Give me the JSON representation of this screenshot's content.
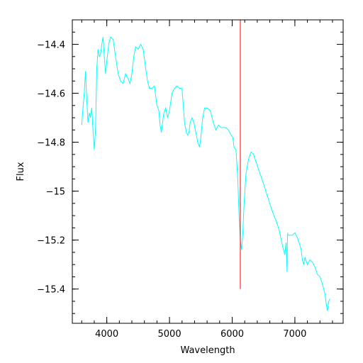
{
  "chart_data": {
    "type": "line",
    "title": "",
    "xlabel": "Wavelength",
    "ylabel": "Flux",
    "xlim": [
      3450,
      7770
    ],
    "ylim": [
      -15.54,
      -14.3
    ],
    "xticks_major": [
      4000,
      5000,
      6000,
      7000
    ],
    "xtick_labels": [
      "4000",
      "5000",
      "6000",
      "7000"
    ],
    "xticks_minor_step": 200,
    "yticks_major": [
      -14.4,
      -14.6,
      -14.8,
      -15,
      -15.2,
      -15.4
    ],
    "ytick_labels": [
      "−14.4",
      "−14.6",
      "−14.8",
      "−15",
      "−15.2",
      "−15.4"
    ],
    "yticks_minor_step": 0.05,
    "grid": false,
    "colors": {
      "spectrum": "#00ffff",
      "marker": "#ff0000",
      "frame": "#000000"
    },
    "series": [
      {
        "x": [
          3600,
          3620,
          3640,
          3660,
          3680,
          3700,
          3720,
          3740,
          3760,
          3780,
          3800,
          3820,
          3840,
          3860,
          3880,
          3900,
          3920,
          3940,
          3960,
          3980,
          4000,
          4030,
          4060,
          4100,
          4140,
          4180,
          4220,
          4260,
          4300,
          4340,
          4370,
          4400,
          4430,
          4460,
          4500,
          4540,
          4580,
          4620,
          4650,
          4680,
          4720,
          4760,
          4800,
          4830,
          4850,
          4870,
          4890,
          4910,
          4940,
          4970,
          5000,
          5040,
          5080,
          5120,
          5160,
          5200,
          5240,
          5270,
          5290,
          5310,
          5330,
          5360,
          5390,
          5420,
          5450,
          5480,
          5500,
          5530,
          5560,
          5600,
          5650,
          5700,
          5740,
          5780,
          5820,
          5860,
          5900,
          5940,
          5980,
          6010,
          6030,
          6060,
          6090,
          6110,
          6130,
          6150,
          6170,
          6190,
          6220,
          6260,
          6300,
          6340,
          6380,
          6420,
          6460,
          6500,
          6550,
          6600,
          6650,
          6700,
          6750,
          6800,
          6840,
          6860,
          6870,
          6875,
          6880,
          6885,
          6890,
          6920,
          6960,
          7000,
          7040,
          7080,
          7100,
          7120,
          7140,
          7160,
          7200,
          7240,
          7280,
          7320,
          7360,
          7400,
          7440,
          7480,
          7500,
          7520,
          7540,
          7560
        ],
        "y": [
          -14.73,
          -14.66,
          -14.6,
          -14.51,
          -14.62,
          -14.72,
          -14.68,
          -14.7,
          -14.66,
          -14.75,
          -14.83,
          -14.75,
          -14.5,
          -14.42,
          -14.45,
          -14.44,
          -14.4,
          -14.37,
          -14.45,
          -14.52,
          -14.47,
          -14.4,
          -14.37,
          -14.38,
          -14.45,
          -14.52,
          -14.55,
          -14.56,
          -14.52,
          -14.54,
          -14.56,
          -14.52,
          -14.45,
          -14.41,
          -14.42,
          -14.4,
          -14.42,
          -14.5,
          -14.55,
          -14.58,
          -14.58,
          -14.57,
          -14.65,
          -14.67,
          -14.73,
          -14.76,
          -14.72,
          -14.68,
          -14.66,
          -14.7,
          -14.67,
          -14.6,
          -14.58,
          -14.57,
          -14.58,
          -14.58,
          -14.72,
          -14.76,
          -14.77,
          -14.76,
          -14.72,
          -14.7,
          -14.72,
          -14.76,
          -14.8,
          -14.82,
          -14.78,
          -14.7,
          -14.66,
          -14.66,
          -14.67,
          -14.72,
          -14.75,
          -14.73,
          -14.74,
          -14.74,
          -14.74,
          -14.75,
          -14.77,
          -14.78,
          -14.82,
          -14.83,
          -14.95,
          -15.1,
          -15.2,
          -15.24,
          -15.17,
          -15.05,
          -14.93,
          -14.87,
          -14.84,
          -14.85,
          -14.88,
          -14.91,
          -14.94,
          -14.97,
          -15.01,
          -15.05,
          -15.09,
          -15.12,
          -15.16,
          -15.22,
          -15.26,
          -15.21,
          -15.28,
          -15.33,
          -15.22,
          -15.17,
          -15.18,
          -15.18,
          -15.18,
          -15.17,
          -15.19,
          -15.22,
          -15.24,
          -15.28,
          -15.3,
          -15.27,
          -15.3,
          -15.28,
          -15.29,
          -15.31,
          -15.34,
          -15.35,
          -15.38,
          -15.42,
          -15.46,
          -15.49,
          -15.45,
          -15.44
        ]
      }
    ],
    "marker_line": {
      "x": 6130,
      "y_from": -15.4,
      "y_to": -14.3
    }
  }
}
